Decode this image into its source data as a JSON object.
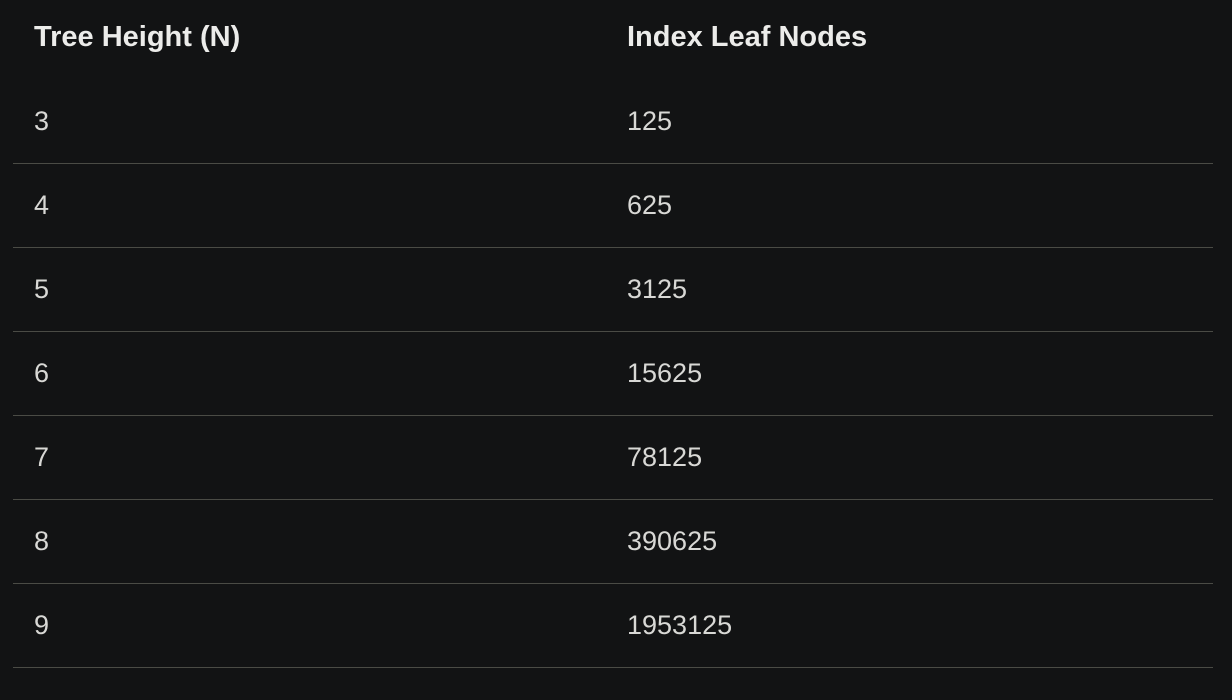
{
  "table": {
    "headers": [
      "Tree Height (N)",
      "Index Leaf Nodes"
    ],
    "rows": [
      [
        "3",
        "125"
      ],
      [
        "4",
        "625"
      ],
      [
        "5",
        "3125"
      ],
      [
        "6",
        "15625"
      ],
      [
        "7",
        "78125"
      ],
      [
        "8",
        "390625"
      ],
      [
        "9",
        "1953125"
      ]
    ]
  }
}
